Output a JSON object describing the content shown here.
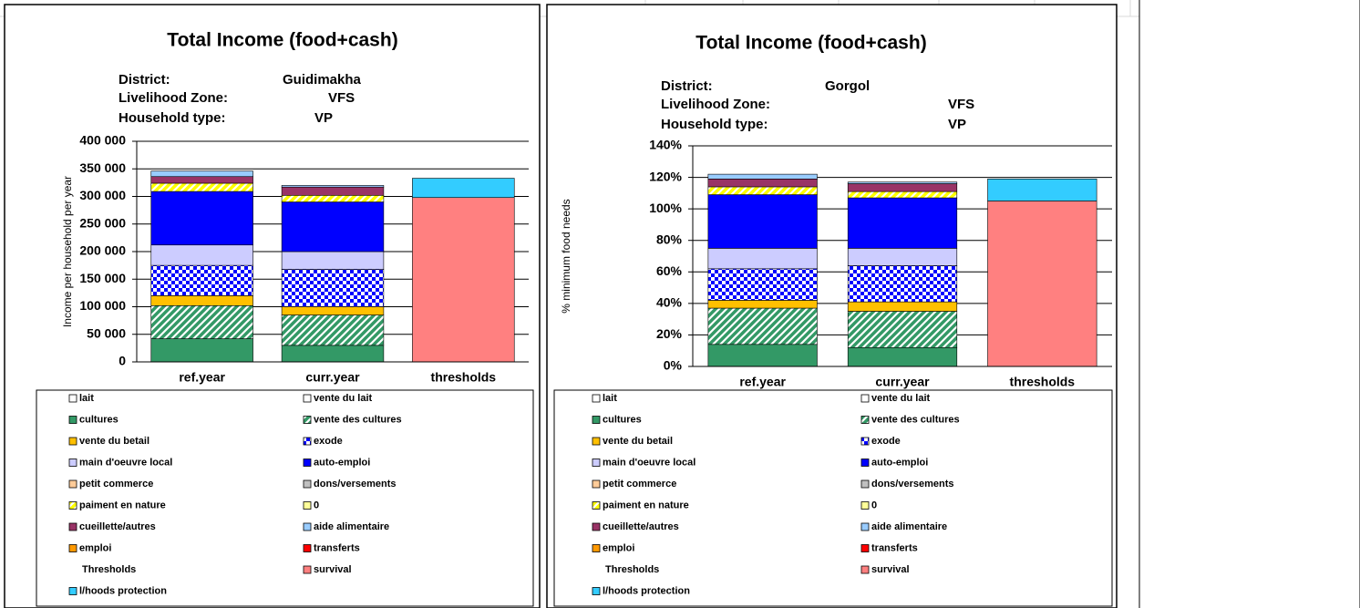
{
  "chart_data": [
    {
      "type": "bar",
      "stacked": true,
      "title": "Total Income (food+cash)",
      "info": [
        {
          "label": "District:",
          "value": "Guidimakha"
        },
        {
          "label": "Livelihood Zone:",
          "value": "VFS"
        },
        {
          "label": "Household type:",
          "value": "VP"
        }
      ],
      "y_label": "Income per household per year",
      "categories": [
        "ref.year",
        "curr.year",
        "thresholds"
      ],
      "ylim": [
        0,
        400000
      ],
      "yticks": [
        0,
        {
          "value": 50000,
          "label": "50 000"
        },
        {
          "value": 100000,
          "label": "100 000"
        },
        {
          "value": 150000,
          "label": "150 000"
        },
        {
          "value": 200000,
          "label": "200 000"
        },
        {
          "value": 250000,
          "label": "250 000"
        },
        {
          "value": 300000,
          "label": "300 000"
        },
        {
          "value": 350000,
          "label": "350 000"
        },
        {
          "value": 400000,
          "label": "400 000"
        }
      ],
      "grid": true,
      "series": [
        {
          "name": "lait",
          "color": "#ffffff",
          "values": [
            0,
            0,
            0
          ]
        },
        {
          "name": "vente du lait",
          "color": "#ffffff",
          "values": [
            0,
            0,
            0
          ]
        },
        {
          "name": "cultures",
          "color": "#339966",
          "values": [
            42000,
            30000,
            0
          ]
        },
        {
          "name": "vente des cultures",
          "color": "#339966",
          "pattern": "diagonal",
          "values": [
            60000,
            55000,
            0
          ]
        },
        {
          "name": "vente du betail",
          "color": "#ffc000",
          "values": [
            18000,
            15000,
            0
          ]
        },
        {
          "name": "exode",
          "color": "#0000ff",
          "pattern": "checker",
          "values": [
            55000,
            68000,
            0
          ]
        },
        {
          "name": "main d'oeuvre local",
          "color": "#ccccff",
          "values": [
            37000,
            32000,
            0
          ]
        },
        {
          "name": "auto-emploi",
          "color": "#0000ff",
          "values": [
            97000,
            90000,
            0
          ]
        },
        {
          "name": "petit commerce",
          "color": "#ffcc99",
          "values": [
            0,
            0,
            0
          ]
        },
        {
          "name": "dons/versements",
          "color": "#c0c0c0",
          "values": [
            0,
            0,
            0
          ]
        },
        {
          "name": "paiment en nature",
          "color": "#ffff00",
          "pattern": "diagonal",
          "values": [
            15000,
            12000,
            0
          ]
        },
        {
          "name": "0",
          "color": "#ffff99",
          "values": [
            0,
            0,
            0
          ]
        },
        {
          "name": "cueillette/autres",
          "color": "#993366",
          "values": [
            12000,
            15000,
            0
          ]
        },
        {
          "name": "aide alimentaire",
          "color": "#99ccff",
          "values": [
            10000,
            3000,
            0
          ]
        },
        {
          "name": "emploi",
          "color": "#ff9900",
          "values": [
            0,
            0,
            0
          ]
        },
        {
          "name": "transferts",
          "color": "#ff0000",
          "values": [
            0,
            0,
            0
          ]
        },
        {
          "name": "Thresholds",
          "color": "none",
          "values": [
            0,
            0,
            0
          ]
        },
        {
          "name": "survival",
          "color": "#ff8080",
          "values": [
            0,
            0,
            298000
          ]
        },
        {
          "name": "l/hoods protection",
          "color": "#33ccff",
          "values": [
            0,
            0,
            35000
          ]
        }
      ]
    },
    {
      "type": "bar",
      "stacked": true,
      "title": "Total Income (food+cash)",
      "info": [
        {
          "label": "District:",
          "value": "Gorgol"
        },
        {
          "label": "Livelihood Zone:",
          "value": "VFS"
        },
        {
          "label": "Household type:",
          "value": "VP"
        }
      ],
      "y_label": "% minimum food needs",
      "categories": [
        "ref.year",
        "curr.year",
        "thresholds"
      ],
      "ylim": [
        0,
        140
      ],
      "yticks": [
        {
          "value": 0,
          "label": "0%"
        },
        {
          "value": 20,
          "label": "20%"
        },
        {
          "value": 40,
          "label": "40%"
        },
        {
          "value": 60,
          "label": "60%"
        },
        {
          "value": 80,
          "label": "80%"
        },
        {
          "value": 100,
          "label": "100%"
        },
        {
          "value": 120,
          "label": "120%"
        },
        {
          "value": 140,
          "label": "140%"
        }
      ],
      "grid": true,
      "series": [
        {
          "name": "lait",
          "color": "#ffffff",
          "values": [
            0,
            0,
            0
          ]
        },
        {
          "name": "vente du lait",
          "color": "#ffffff",
          "values": [
            0,
            0,
            0
          ]
        },
        {
          "name": "cultures",
          "color": "#339966",
          "values": [
            14,
            12,
            0
          ]
        },
        {
          "name": "vente des cultures",
          "color": "#339966",
          "pattern": "diagonal",
          "values": [
            23,
            23,
            0
          ]
        },
        {
          "name": "vente du betail",
          "color": "#ffc000",
          "values": [
            5,
            6,
            0
          ]
        },
        {
          "name": "exode",
          "color": "#0000ff",
          "pattern": "checker",
          "values": [
            20,
            23,
            0
          ]
        },
        {
          "name": "main d'oeuvre local",
          "color": "#ccccff",
          "values": [
            13,
            11,
            0
          ]
        },
        {
          "name": "auto-emploi",
          "color": "#0000ff",
          "values": [
            34,
            32,
            0
          ]
        },
        {
          "name": "petit commerce",
          "color": "#ffcc99",
          "values": [
            0,
            0,
            0
          ]
        },
        {
          "name": "dons/versements",
          "color": "#c0c0c0",
          "values": [
            0,
            0,
            0
          ]
        },
        {
          "name": "paiment en nature",
          "color": "#ffff00",
          "pattern": "diagonal",
          "values": [
            5,
            4,
            0
          ]
        },
        {
          "name": "0",
          "color": "#ffff99",
          "values": [
            0,
            0,
            0
          ]
        },
        {
          "name": "cueillette/autres",
          "color": "#993366",
          "values": [
            5,
            5,
            0
          ]
        },
        {
          "name": "aide alimentaire",
          "color": "#99ccff",
          "values": [
            3,
            1,
            0
          ]
        },
        {
          "name": "emploi",
          "color": "#ff9900",
          "values": [
            0,
            0,
            0
          ]
        },
        {
          "name": "transferts",
          "color": "#ff0000",
          "values": [
            0,
            0,
            0
          ]
        },
        {
          "name": "Thresholds",
          "color": "none",
          "values": [
            0,
            0,
            0
          ]
        },
        {
          "name": "survival",
          "color": "#ff8080",
          "values": [
            0,
            0,
            105
          ]
        },
        {
          "name": "l/hoods protection",
          "color": "#33ccff",
          "values": [
            0,
            0,
            14
          ]
        }
      ]
    }
  ]
}
